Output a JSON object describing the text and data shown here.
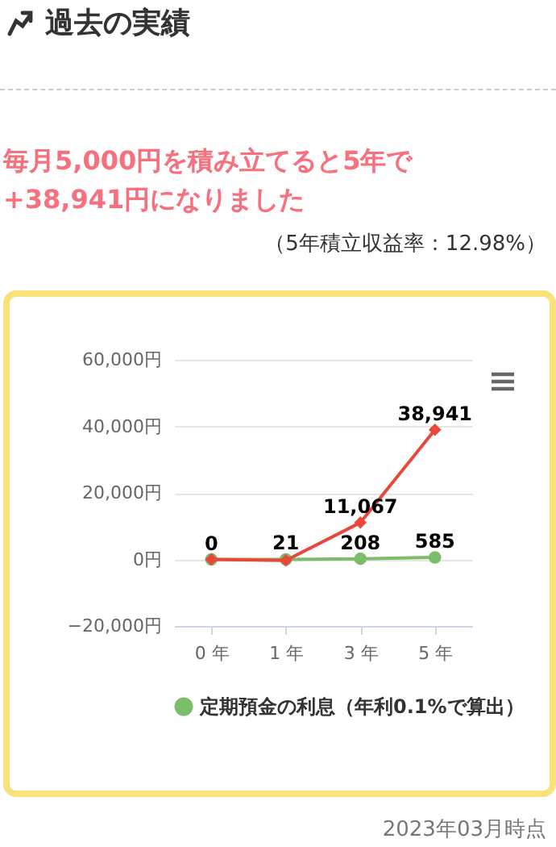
{
  "chart_data": {
    "type": "line",
    "title": "過去の実績",
    "subtitle": "毎月5,000円を積み立てると5年で+38,941円になりました",
    "annotations": [
      "（5年積立収益率：12.98%）",
      "2023年03月時点"
    ],
    "categories": [
      "0 年",
      "1 年",
      "3 年",
      "5 年"
    ],
    "series": [
      {
        "name": "定期預金の利息（年利0.1%で算出）",
        "color": "#7cbd6a",
        "marker": "circle",
        "values": [
          0,
          21,
          208,
          585
        ],
        "value_labels": [
          "0",
          "21",
          "208",
          "585"
        ]
      },
      {
        "color": "#e8473a",
        "marker": "diamond",
        "values": [
          0,
          -300,
          11067,
          38941
        ],
        "value_labels": [
          null,
          null,
          "11,067",
          "38,941"
        ]
      }
    ],
    "ylim": [
      -20000,
      60000
    ],
    "yticks": [
      {
        "value": -20000,
        "label": "−20,000円"
      },
      {
        "value": 0,
        "label": "0円"
      },
      {
        "value": 20000,
        "label": "20,000円"
      },
      {
        "value": 40000,
        "label": "40,000円"
      },
      {
        "value": 60000,
        "label": "60,000円"
      }
    ],
    "grid": "y",
    "legend": "bottom"
  }
}
